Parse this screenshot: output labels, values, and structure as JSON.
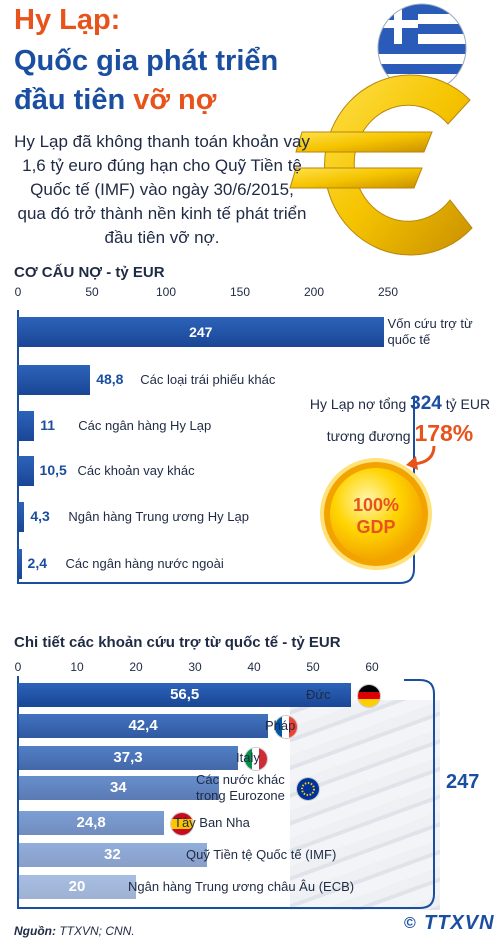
{
  "header": {
    "title_line1": "Hy Lạp:",
    "title_line2": "Quốc gia phát triển",
    "title_line3a": "đầu tiên ",
    "title_line3b": "vỡ nợ"
  },
  "intro": "Hy Lạp đã không thanh toán khoản vay 1,6 tỷ euro đúng hạn cho Quỹ Tiền tệ Quốc tế (IMF) vào ngày 30/6/2015, qua đó trở thành nền kinh tế phát triển đầu tiên vỡ nợ.",
  "callout": {
    "line1_pre": "Hy Lạp nợ tổng ",
    "line1_num": "324",
    "line1_post": " tỷ EUR",
    "line2_pre": "tương đương ",
    "line2_num": "178%",
    "circle_line1": "100%",
    "circle_line2": "GDP"
  },
  "total_aid": "247",
  "source_label": "Nguồn:",
  "source_text": "TTXVN; CNN.",
  "logo_text": "TTXVN",
  "colors": {
    "orange": "#e8531c",
    "blue": "#1a4ea0",
    "bar": "#2059ae"
  },
  "chart_data": [
    {
      "type": "bar",
      "orientation": "horizontal",
      "title": "CƠ CẤU NỢ - tỷ EUR",
      "xlim": [
        0,
        250
      ],
      "xticks": [
        "0",
        "50",
        "100",
        "150",
        "200",
        "250"
      ],
      "categories": [
        "Vốn cứu trợ từ quốc tế",
        "Các loại trái phiếu khác",
        "Các ngân hàng Hy Lạp",
        "Các khoản vay khác",
        "Ngân hàng Trung ương Hy Lạp",
        "Các ngân hàng nước ngoài"
      ],
      "values": [
        247,
        48.8,
        11,
        10.5,
        4.3,
        2.4
      ],
      "value_labels": [
        "247",
        "48,8",
        "11",
        "10,5",
        "4,3",
        "2,4"
      ]
    },
    {
      "type": "bar",
      "orientation": "horizontal",
      "title": "Chi tiết các khoản cứu trợ từ quốc tế - tỷ EUR",
      "xlim": [
        0,
        60
      ],
      "xticks": [
        "0",
        "10",
        "20",
        "30",
        "40",
        "50",
        "60"
      ],
      "categories": [
        "Đức",
        "Pháp",
        "Italy",
        "Các nước khác trong Eurozone",
        "Tây Ban Nha",
        "Quỹ Tiền tệ Quốc tế (IMF)",
        "Ngân hàng Trung ương châu Âu (ECB)"
      ],
      "values": [
        56.5,
        42.4,
        37.3,
        34,
        24.8,
        32,
        20
      ],
      "value_labels": [
        "56,5",
        "42,4",
        "37,3",
        "34",
        "24,8",
        "32",
        "20"
      ],
      "flags": [
        "germany-flag",
        "france-flag",
        "italy-flag",
        "eu-flag",
        "spain-flag",
        "",
        ""
      ]
    }
  ]
}
